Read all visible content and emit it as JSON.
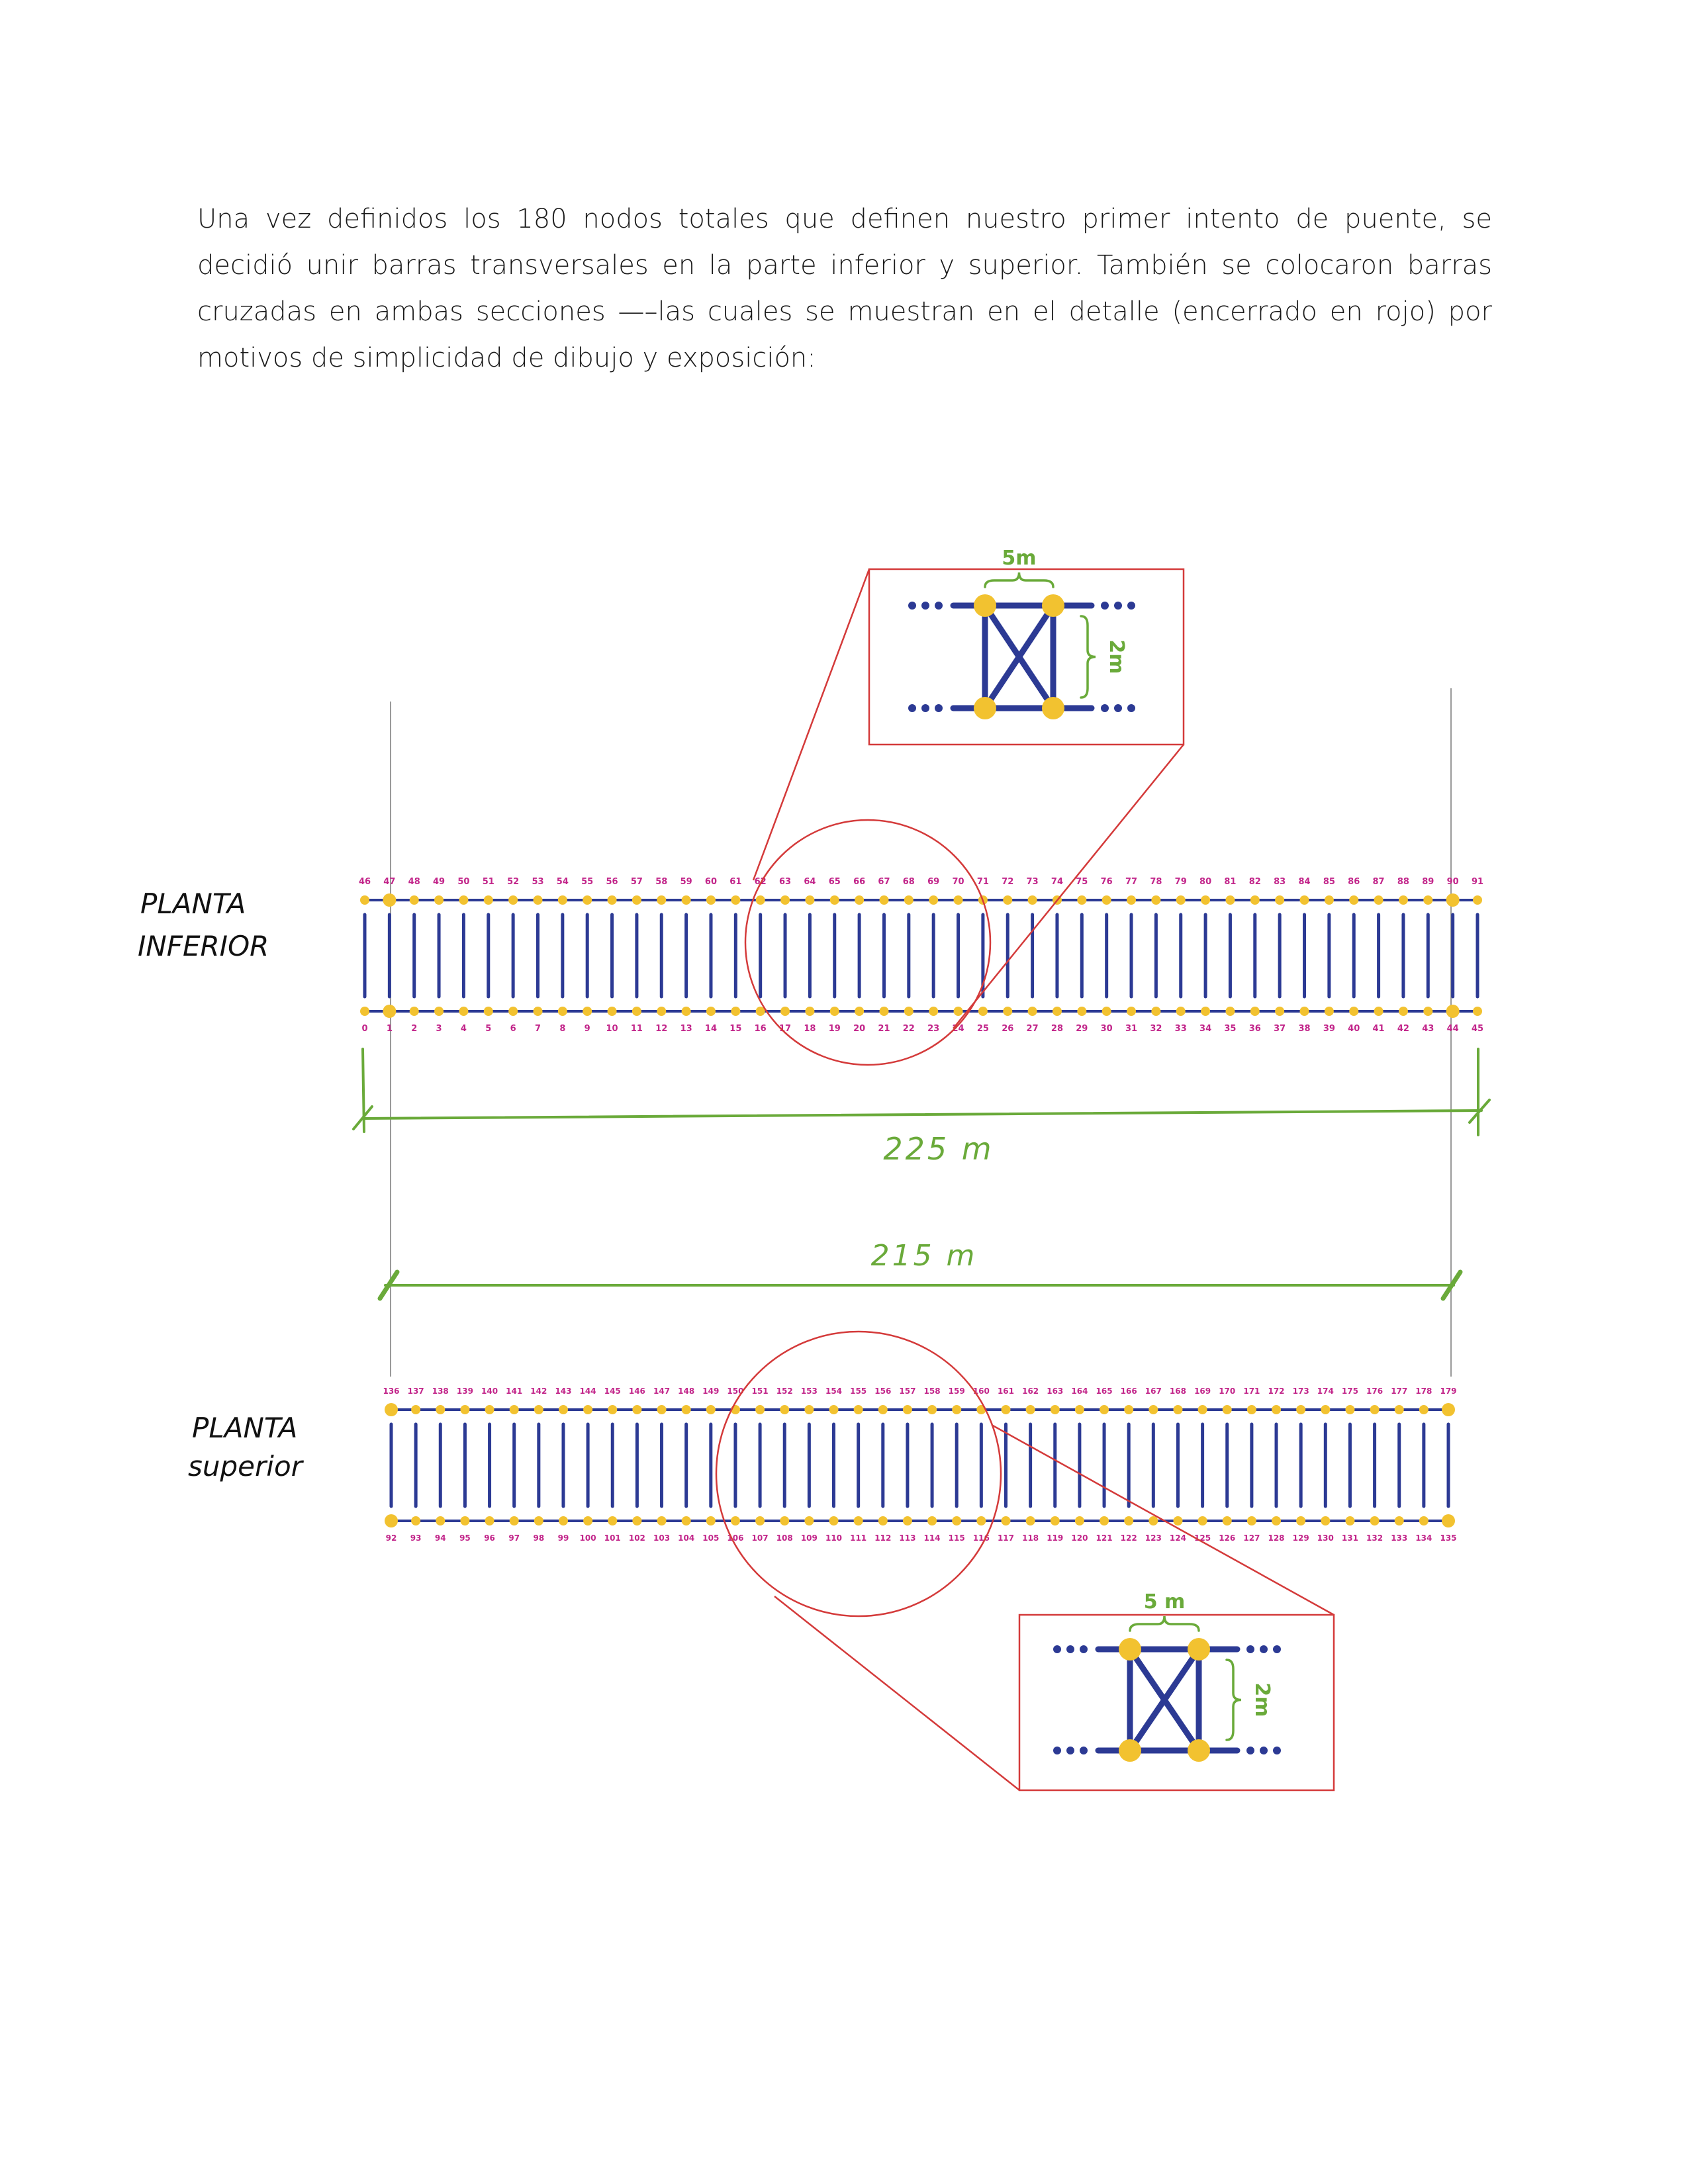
{
  "paragraph": "Una vez definidos los 180 nodos totales que definen nuestro primer intento de puente, se decidió unir barras transversales en la parte inferior y superior. También se colocaron barras cruzadas en ambas secciones —–las cuales se muestran en el detalle (encerrado en rojo) por motivos de simplicidad de dibujo y exposición:",
  "colors": {
    "bar": "#2c3a94",
    "node": "#f2c230",
    "label": "#c2258a",
    "dimension": "#6aaa3a",
    "detail_frame": "#d43a3a",
    "guide": "#9a9a9a"
  },
  "planta_inferior": {
    "title_line1": "PLANTA",
    "title_line2": "INFERIOR",
    "top_labels": [
      "46",
      "47",
      "48",
      "49",
      "50",
      "51",
      "52",
      "53",
      "54",
      "55",
      "56",
      "57",
      "58",
      "59",
      "60",
      "61",
      "62",
      "63",
      "64",
      "65",
      "66",
      "67",
      "68",
      "69",
      "70",
      "71",
      "72",
      "73",
      "74",
      "75",
      "76",
      "77",
      "78",
      "79",
      "80",
      "81",
      "82",
      "83",
      "84",
      "85",
      "86",
      "87",
      "88",
      "89",
      "90",
      "91"
    ],
    "bottom_labels": [
      "0",
      "1",
      "2",
      "3",
      "4",
      "5",
      "6",
      "7",
      "8",
      "9",
      "10",
      "11",
      "12",
      "13",
      "14",
      "15",
      "16",
      "17",
      "18",
      "19",
      "20",
      "21",
      "22",
      "23",
      "24",
      "25",
      "26",
      "27",
      "28",
      "29",
      "30",
      "31",
      "32",
      "33",
      "34",
      "35",
      "36",
      "37",
      "38",
      "39",
      "40",
      "41",
      "42",
      "43",
      "44",
      "45"
    ],
    "dimension": "225 m"
  },
  "planta_superior": {
    "title_line1": "PLANTA",
    "title_line2": "superior",
    "top_labels": [
      "136",
      "137",
      "138",
      "139",
      "140",
      "141",
      "142",
      "143",
      "144",
      "145",
      "146",
      "147",
      "148",
      "149",
      "150",
      "151",
      "152",
      "153",
      "154",
      "155",
      "156",
      "157",
      "158",
      "159",
      "160",
      "161",
      "162",
      "163",
      "164",
      "165",
      "166",
      "167",
      "168",
      "169",
      "170",
      "171",
      "172",
      "173",
      "174",
      "175",
      "176",
      "177",
      "178",
      "179"
    ],
    "bottom_labels": [
      "92",
      "93",
      "94",
      "95",
      "96",
      "97",
      "98",
      "99",
      "100",
      "101",
      "102",
      "103",
      "104",
      "105",
      "106",
      "107",
      "108",
      "109",
      "110",
      "111",
      "112",
      "113",
      "114",
      "115",
      "116",
      "117",
      "118",
      "119",
      "120",
      "121",
      "122",
      "123",
      "124",
      "125",
      "126",
      "127",
      "128",
      "129",
      "130",
      "131",
      "132",
      "133",
      "134",
      "135"
    ],
    "dimension": "215 m"
  },
  "detail": {
    "width_label": "5m",
    "height_label": "2m",
    "width_label_lower": "5 m",
    "height_label_lower": "2m"
  }
}
